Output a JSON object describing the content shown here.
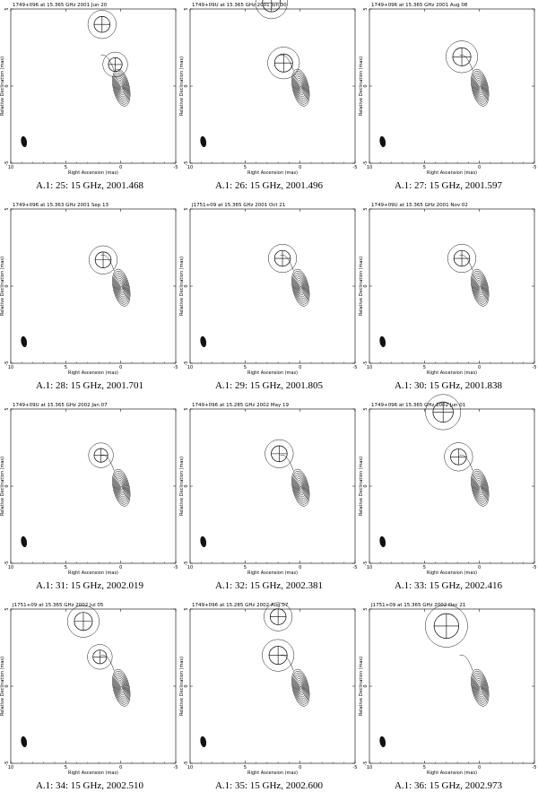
{
  "x_axis_label": "Right Ascension (mas)",
  "y_axis_label": "Relative Declination (mas)",
  "x_ticks": [
    "10",
    "5",
    "0",
    "-5"
  ],
  "y_ticks": [
    "5",
    "0",
    "-5"
  ],
  "panels": [
    {
      "title": "1749+096 at 15.365 GHz 2001 Jun 20",
      "caption": "A.1: 25: 15 GHz, 2001.468",
      "components": [
        [
          0.5,
          1.4,
          0.5
        ],
        [
          1.7,
          4.0,
          0.6
        ]
      ]
    },
    {
      "title": "1749+09U at 15.365 GHz 2001 Jun 30",
      "caption": "A.1: 26: 15 GHz, 2001.496",
      "components": [
        [
          1.5,
          1.5,
          0.7
        ],
        [
          2.6,
          5.4,
          0.7
        ]
      ]
    },
    {
      "title": "1749+096 at 15.365 GHz 2001 Aug 08",
      "caption": "A.1: 27: 15 GHz, 2001.597",
      "components": [
        [
          1.6,
          1.9,
          0.7
        ]
      ]
    },
    {
      "title": "1749+096 at 15.363 GHz 2001 Sep 13",
      "caption": "A.1: 28: 15 GHz, 2001.701",
      "components": [
        [
          1.6,
          1.7,
          0.6
        ]
      ]
    },
    {
      "title": "J1751+09 at 15.365 GHz 2001 Oct 21",
      "caption": "A.1: 29: 15 GHz, 2001.805",
      "components": [
        [
          1.6,
          1.8,
          0.6
        ]
      ]
    },
    {
      "title": "1749+09U at 15.365 GHz 2001 Nov 02",
      "caption": "A.1: 30: 15 GHz, 2001.838",
      "components": [
        [
          1.6,
          1.8,
          0.6
        ]
      ]
    },
    {
      "title": "1749+09U at 15.365 GHz 2002 Jan 07",
      "caption": "A.1: 31: 15 GHz, 2002.019",
      "components": [
        [
          1.8,
          2.0,
          0.5
        ]
      ]
    },
    {
      "title": "1749+096 at 15.285 GHz 2002 May 19",
      "caption": "A.1: 32: 15 GHz, 2002.381",
      "components": [
        [
          1.9,
          2.1,
          0.6
        ]
      ]
    },
    {
      "title": "1749+096 at 15.365 GHz 2002 Jun 01",
      "caption": "A.1: 33: 15 GHz, 2002.416",
      "components": [
        [
          1.9,
          1.9,
          0.6
        ],
        [
          3.3,
          4.8,
          0.8
        ]
      ]
    },
    {
      "title": "J1751+09 at 15.365 GHz 2002 Jul 05",
      "caption": "A.1: 34: 15 GHz, 2002.510",
      "components": [
        [
          1.9,
          1.9,
          0.5
        ],
        [
          3.4,
          4.2,
          0.7
        ]
      ]
    },
    {
      "title": "1749+096 at 15.285 GHz 2002 Aug 07",
      "caption": "A.1: 35: 15 GHz, 2002.600",
      "components": [
        [
          2.0,
          2.0,
          0.7
        ],
        [
          2.0,
          4.5,
          0.6
        ]
      ]
    },
    {
      "title": "J1751+09 at 15.365 GHz 2002 Dec 21",
      "caption": "A.1: 36: 15 GHz, 2002.973",
      "components": [
        [
          3.0,
          3.9,
          1.0
        ]
      ]
    }
  ]
}
